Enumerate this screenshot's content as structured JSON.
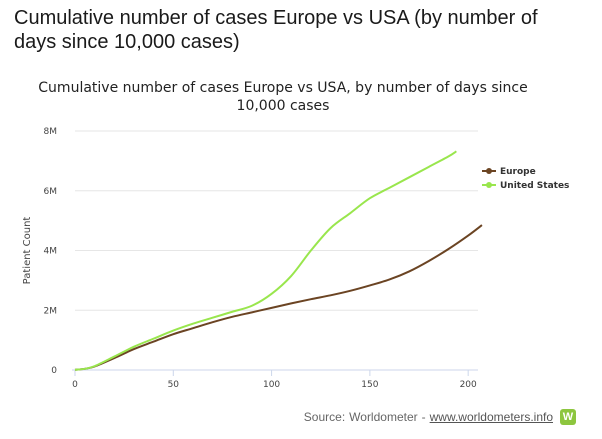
{
  "page": {
    "heading": "Cumulative number of cases Europe vs USA (by number of days since 10,000 cases)"
  },
  "source": {
    "prefix": "Source: ",
    "name": "Worldometer",
    "separator": " - ",
    "link": "www.worldometers.info",
    "logo_letter": "W"
  },
  "chart_data": {
    "type": "line",
    "title": "Cumulative number of cases Europe vs USA, by number of days since 10,000 cases",
    "ylabel": "Patient Count",
    "xlabel": "",
    "xlim": [
      0,
      205
    ],
    "ylim": [
      0,
      8000000
    ],
    "xticks": [
      0,
      50,
      100,
      150,
      200
    ],
    "xtick_labels": [
      "0",
      "50",
      "100",
      "150",
      "200"
    ],
    "yticks": [
      0,
      2000000,
      4000000,
      6000000,
      8000000
    ],
    "ytick_labels": [
      "0",
      "2M",
      "4M",
      "6M",
      "8M"
    ],
    "grid": "horizontal",
    "legend": "top-right",
    "series": [
      {
        "name": "Europe",
        "color": "#6b4423",
        "x": [
          0,
          5,
          10,
          20,
          30,
          40,
          50,
          60,
          70,
          80,
          90,
          100,
          110,
          120,
          130,
          140,
          150,
          160,
          170,
          180,
          190,
          200,
          207
        ],
        "y": [
          10000,
          40000,
          120000,
          400000,
          700000,
          950000,
          1200000,
          1400000,
          1600000,
          1780000,
          1930000,
          2080000,
          2230000,
          2370000,
          2500000,
          2650000,
          2830000,
          3030000,
          3300000,
          3650000,
          4050000,
          4500000,
          4850000
        ]
      },
      {
        "name": "United States",
        "color": "#99e64d",
        "x": [
          0,
          5,
          10,
          20,
          30,
          40,
          50,
          60,
          70,
          80,
          90,
          100,
          110,
          120,
          130,
          140,
          150,
          160,
          170,
          180,
          190,
          194
        ],
        "y": [
          10000,
          40000,
          130000,
          450000,
          780000,
          1050000,
          1320000,
          1550000,
          1750000,
          1950000,
          2150000,
          2550000,
          3150000,
          4000000,
          4750000,
          5250000,
          5750000,
          6100000,
          6450000,
          6800000,
          7150000,
          7320000
        ]
      }
    ]
  }
}
